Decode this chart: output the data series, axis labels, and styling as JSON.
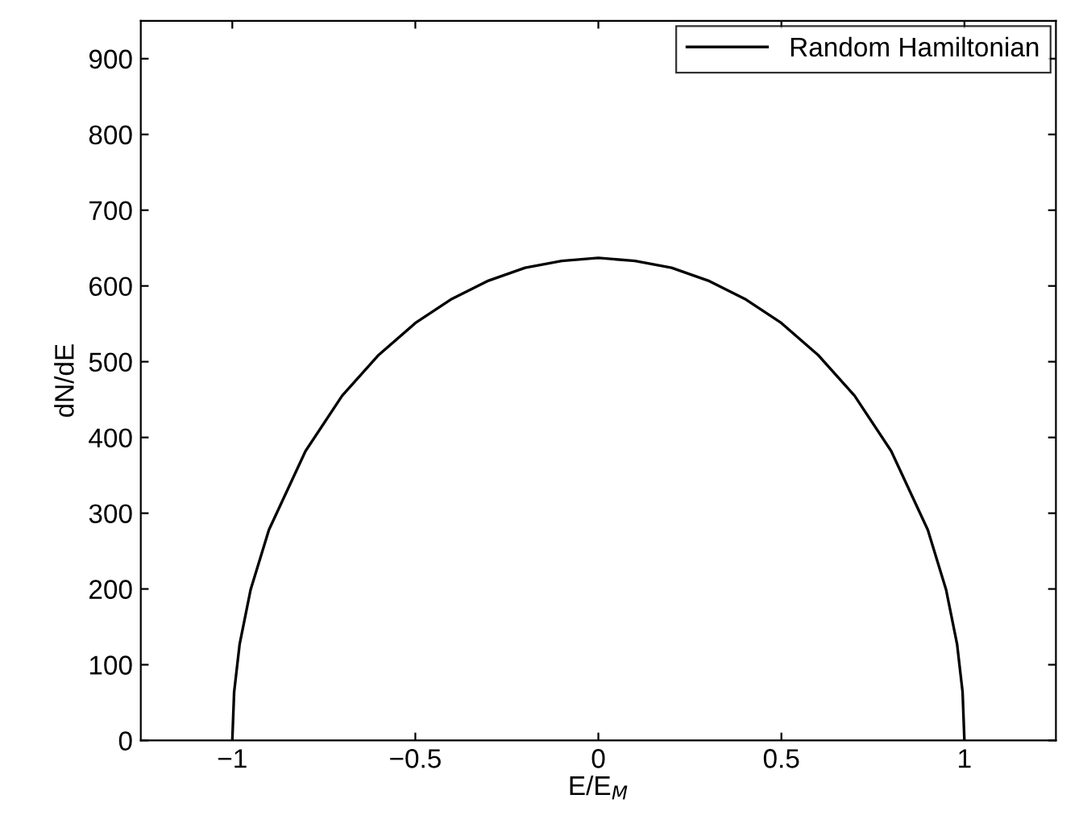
{
  "chart_data": {
    "type": "line",
    "xlabel": "E/E$_{M}$",
    "ylabel": "dN/dE",
    "x": [
      -1,
      -0.995,
      -0.98,
      -0.95,
      -0.9,
      -0.8,
      -0.7,
      -0.6,
      -0.5,
      -0.4,
      -0.3,
      -0.2,
      -0.1,
      0,
      0.1,
      0.2,
      0.3,
      0.4,
      0.5,
      0.6,
      0.7,
      0.8,
      0.9,
      0.95,
      0.98,
      0.995,
      1
    ],
    "series": [
      {
        "name": "Random Hamiltonian",
        "color": "#000000",
        "values": [
          0,
          64,
          127,
          199,
          278,
          382,
          455,
          509,
          551,
          583,
          607,
          624,
          633,
          637,
          633,
          624,
          607,
          583,
          551,
          509,
          455,
          382,
          278,
          199,
          127,
          64,
          0
        ]
      }
    ],
    "xlim": [
      -1.25,
      1.25
    ],
    "ylim": [
      0,
      950
    ],
    "xticks": [
      {
        "value": -1,
        "label": "−1"
      },
      {
        "value": -0.5,
        "label": "−0.5"
      },
      0,
      0.5,
      1
    ],
    "yticks": [
      0,
      100,
      200,
      300,
      400,
      500,
      600,
      700,
      800,
      900
    ],
    "grid": false,
    "legend": "top right",
    "marker": "none",
    "line_style": "solid"
  }
}
